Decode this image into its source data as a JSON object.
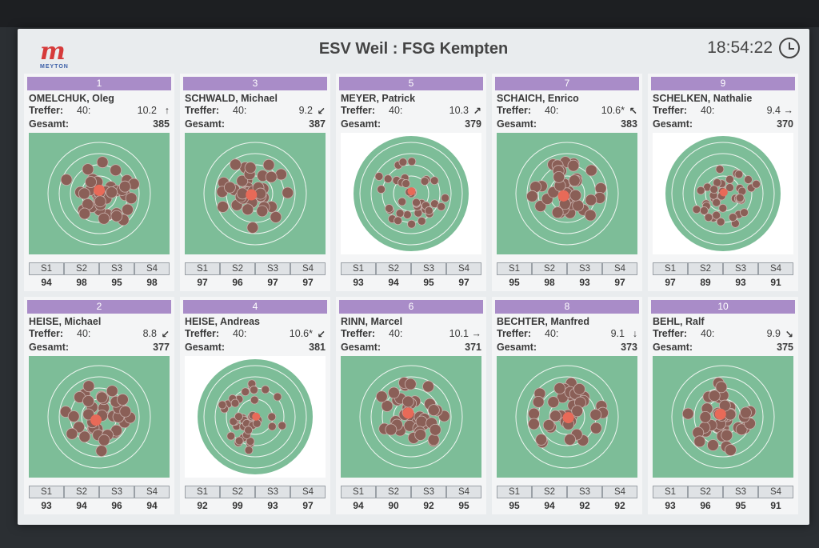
{
  "header": {
    "logo_text": "m",
    "logo_sub": "MEYTON",
    "title": "ESV Weil : FSG Kempten",
    "clock": "18:54:22"
  },
  "labels": {
    "treffer": "Treffer:",
    "gesamt": "Gesamt:"
  },
  "series_labels": [
    "S1",
    "S2",
    "S3",
    "S4"
  ],
  "colors": {
    "lane_header": "#a98cc8",
    "target_green": "#7dbd98",
    "shot": "#8a5f57",
    "last_shot": "#e86a58",
    "highlight_shot": "#e3e44a"
  },
  "lanes": [
    {
      "lane": "1",
      "name": "OMELCHUK, Oleg",
      "shots": "40:",
      "last": "10.2",
      "arrow": "↑",
      "total": "385",
      "series": [
        "94",
        "98",
        "95",
        "98"
      ]
    },
    {
      "lane": "3",
      "name": "SCHWALD, Michael",
      "shots": "40:",
      "last": "9.2",
      "arrow": "↙",
      "total": "387",
      "series": [
        "97",
        "96",
        "97",
        "97"
      ]
    },
    {
      "lane": "5",
      "name": "MEYER, Patrick",
      "shots": "40:",
      "last": "10.3",
      "arrow": "↗",
      "total": "379",
      "series": [
        "93",
        "94",
        "95",
        "97"
      ]
    },
    {
      "lane": "7",
      "name": "SCHAICH, Enrico",
      "shots": "40:",
      "last": "10.6*",
      "arrow": "↖",
      "total": "383",
      "series": [
        "95",
        "98",
        "93",
        "97"
      ]
    },
    {
      "lane": "9",
      "name": "SCHELKEN, Nathalie",
      "shots": "40:",
      "last": "9.4",
      "arrow": "→",
      "total": "370",
      "series": [
        "97",
        "89",
        "93",
        "91"
      ]
    },
    {
      "lane": "2",
      "name": "HEISE, Michael",
      "shots": "40:",
      "last": "8.8",
      "arrow": "↙",
      "total": "377",
      "series": [
        "93",
        "94",
        "96",
        "94"
      ]
    },
    {
      "lane": "4",
      "name": "HEISE, Andreas",
      "shots": "40:",
      "last": "10.6*",
      "arrow": "↙",
      "total": "381",
      "series": [
        "92",
        "99",
        "93",
        "97"
      ]
    },
    {
      "lane": "6",
      "name": "RINN, Marcel",
      "shots": "40:",
      "last": "10.1",
      "arrow": "→",
      "total": "371",
      "series": [
        "94",
        "90",
        "92",
        "95"
      ]
    },
    {
      "lane": "8",
      "name": "BECHTER, Manfred",
      "shots": "40:",
      "last": "9.1",
      "arrow": "↓",
      "total": "373",
      "series": [
        "95",
        "94",
        "92",
        "92"
      ]
    },
    {
      "lane": "10",
      "name": "BEHL, Ralf",
      "shots": "40:",
      "last": "9.9",
      "arrow": "↘",
      "total": "375",
      "series": [
        "93",
        "96",
        "95",
        "91"
      ]
    }
  ]
}
